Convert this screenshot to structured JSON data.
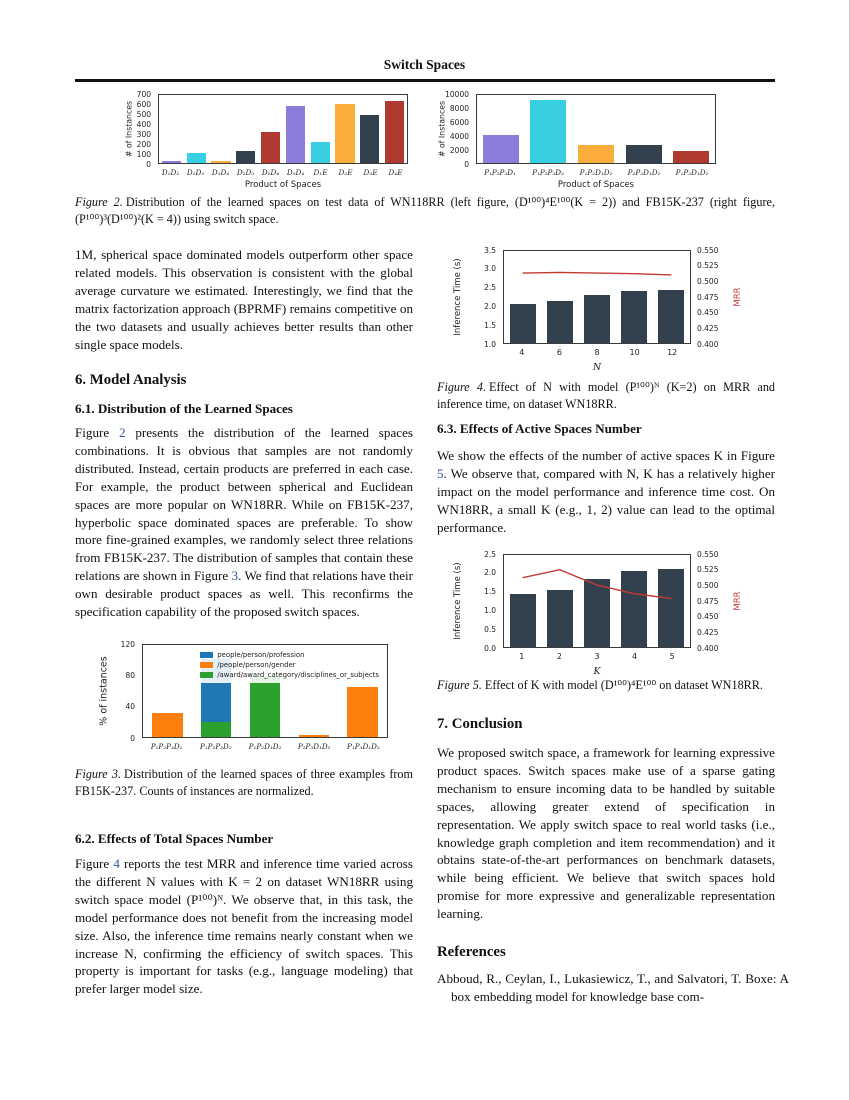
{
  "header": {
    "title": "Switch Spaces"
  },
  "link_color": "#3254a0",
  "sections": {
    "s6": "6. Model Analysis",
    "s61": "6.1. Distribution of the Learned Spaces",
    "s62": "6.2. Effects of Total Spaces Number",
    "s63": "6.3. Effects of Active Spaces Number",
    "s7": "7. Conclusion",
    "references": "References"
  },
  "paragraphs": {
    "p1": "1M, spherical space dominated models outperform other space related models. This observation is consistent with the global average curvature we estimated. Interestingly, we find that the matrix factorization approach (BPRMF) remains competitive on the two datasets and usually achieves better results than other single space models.",
    "p2": "Figure 2 presents the distribution of the learned spaces combinations. It is obvious that samples are not randomly distributed. Instead, certain products are preferred in each case. For example, the product between spherical and Euclidean spaces are more popular on WN18RR. While on FB15K-237, hyperbolic space dominated spaces are preferable. To show more fine-grained examples, we randomly select three relations from FB15K-237. The distribution of samples that contain these relations are shown in Figure 3. We find that relations have their own desirable product spaces as well. This reconfirms the specification capability of the proposed switch spaces.",
    "p3": "Figure 4 reports the test MRR and inference time varied across the different N values with K = 2 on dataset WN18RR using switch space model (P¹⁰⁰)ᴺ. We observe that, in this task, the model performance does not benefit from the increasing model size. Also, the inference time remains nearly constant when we increase N, confirming the efficiency of switch spaces. This property is important for tasks (e.g., language modeling) that prefer larger model size.",
    "p4": "We show the effects of the number of active spaces K in Figure 5. We observe that, compared with N, K has a relatively higher impact on the model performance and inference time cost. On WN18RR, a small K (e.g., 1, 2) value can lead to the optimal performance.",
    "p5": "We proposed switch space, a framework for learning expressive product spaces. Switch spaces make use of a sparse gating mechanism to ensure incoming data to be handled by suitable spaces, allowing greater extend of specification in representation. We apply switch space to real world tasks (i.e., knowledge graph completion and item recommendation) and it obtains state-of-the-art performances on benchmark datasets, while being efficient. We believe that switch spaces hold promise for more expressive and generalizable representation learning.",
    "ref1": "Abboud, R., Ceylan, I., Lukasiewicz, T., and Salvatori, T. Boxe: A box embedding model for knowledge base com-"
  },
  "captions": {
    "fig2_label": "Figure 2.",
    "fig2_text": "Distribution of the learned spaces on test data of WN118RR (left figure, (D¹⁰⁰)⁴E¹⁰⁰(K = 2)) and FB15K-237 (right figure, (P¹⁰⁰)³(D¹⁰⁰)²(K = 4)) using switch space.",
    "fig3_label": "Figure 3.",
    "fig3_text": "Distribution of the learned spaces of three examples from FB15K-237. Counts of instances are normalized.",
    "fig4_label": "Figure 4.",
    "fig4_text": "Effect of N with model (P¹⁰⁰)ᴺ (K=2) on MRR and inference time, on dataset WN18RR.",
    "fig5_label": "Figure 5.",
    "fig5_text": "Effect of K with model (D¹⁰⁰)⁴E¹⁰⁰ on dataset WN18RR."
  },
  "chart_data": {
    "fig2_left": {
      "type": "bar",
      "title": "",
      "ylabel": "# of Instances",
      "xlabel": "Product of Spaces",
      "ylim": [
        0,
        700
      ],
      "yticks": [
        "0",
        "100",
        "200",
        "300",
        "400",
        "500",
        "600",
        "700"
      ],
      "categories": [
        "D₁D₂",
        "D₁D₃",
        "D₁D₄",
        "D₂D₃",
        "D₂D₄",
        "D₃D₄",
        "D₁E",
        "D₂E",
        "D₃E",
        "D₄E"
      ],
      "values": [
        25,
        105,
        20,
        125,
        320,
        585,
        220,
        605,
        495,
        635
      ],
      "colors": [
        "#8e7cdb",
        "#39cfe3",
        "#fbad3c",
        "#33404e",
        "#b03a30"
      ],
      "bar_width": "78%"
    },
    "fig2_right": {
      "type": "bar",
      "title": "",
      "ylabel": "# of Instances",
      "xlabel": "Product of Spaces",
      "ylim": [
        0,
        10000
      ],
      "yticks": [
        "0",
        "2000",
        "4000",
        "6000",
        "8000",
        "10000"
      ],
      "categories": [
        "P₁P₂P₃D₁",
        "P₁P₂P₃D₂",
        "P₁P₂D₁D₂",
        "P₂P₃D₁D₂",
        "P₁P₃D₁D₂"
      ],
      "values": [
        4100,
        9300,
        2700,
        2650,
        1700
      ],
      "colors": [
        "#8e7cdb",
        "#39cfe3",
        "#fbad3c",
        "#33404e",
        "#b03a30"
      ],
      "bar_width": "76%"
    },
    "fig3": {
      "type": "bar",
      "title": "",
      "ylabel": "% of instances",
      "xlabel": "",
      "ylim": [
        0,
        120
      ],
      "yticks": [
        "0",
        "40",
        "80",
        "120"
      ],
      "categories": [
        "P₁P₂P₃D₁",
        "P₁P₂P₃D₂",
        "P₁P₂D₁D₂",
        "P₂P₃D₁D₂",
        "P₁P₃D₁D₂"
      ],
      "legend": [
        {
          "label": "people/person/profession",
          "color": "#1f77b4"
        },
        {
          "label": "/people/person/gender",
          "color": "#ff7f0e"
        },
        {
          "label": "/award/award_category/disciplines_or_subjects",
          "color": "#2ca02c"
        }
      ],
      "stacks": [
        [
          {
            "s": 1,
            "v": 31
          }
        ],
        [
          {
            "s": 2,
            "v": 20
          },
          {
            "s": 0,
            "v": 82
          }
        ],
        [
          {
            "s": 2,
            "v": 79
          }
        ],
        [
          {
            "s": 1,
            "v": 3
          }
        ],
        [
          {
            "s": 1,
            "v": 65
          }
        ]
      ],
      "bar_width": "62%",
      "legend_position": "upper center"
    },
    "fig4": {
      "type": "bar+line",
      "title": "",
      "ylabel": "Inference Time (s)",
      "y2label": "MRR",
      "xlabel": "N",
      "ylim": [
        1.0,
        3.5
      ],
      "yticks": [
        "1.0",
        "1.5",
        "2.0",
        "2.5",
        "3.0",
        "3.5"
      ],
      "y2lim": [
        0.4,
        0.55
      ],
      "y2ticks": [
        "0.400",
        "0.425",
        "0.450",
        "0.475",
        "0.500",
        "0.525",
        "0.550"
      ],
      "categories": [
        "4",
        "6",
        "8",
        "10",
        "12"
      ],
      "values": [
        2.05,
        2.15,
        2.3,
        2.4,
        2.45
      ],
      "line": [
        0.514,
        0.515,
        0.514,
        0.513,
        0.511
      ],
      "bar_color": "#33404e",
      "line_color": "#c23b33",
      "bar_width": "70%"
    },
    "fig5": {
      "type": "bar+line",
      "title": "",
      "ylabel": "Inference Time (s)",
      "y2label": "MRR",
      "xlabel": "K",
      "ylim": [
        0.0,
        2.5
      ],
      "yticks": [
        "0.0",
        "0.5",
        "1.0",
        "1.5",
        "2.0",
        "2.5"
      ],
      "y2lim": [
        0.4,
        0.55
      ],
      "y2ticks": [
        "0.400",
        "0.425",
        "0.450",
        "0.475",
        "0.500",
        "0.525",
        "0.550"
      ],
      "categories": [
        "1",
        "2",
        "3",
        "4",
        "5"
      ],
      "values": [
        1.45,
        1.55,
        1.85,
        2.07,
        2.12
      ],
      "line": [
        0.513,
        0.526,
        0.501,
        0.487,
        0.479
      ],
      "bar_color": "#33404e",
      "line_color": "#c23b33",
      "bar_width": "70%"
    }
  }
}
